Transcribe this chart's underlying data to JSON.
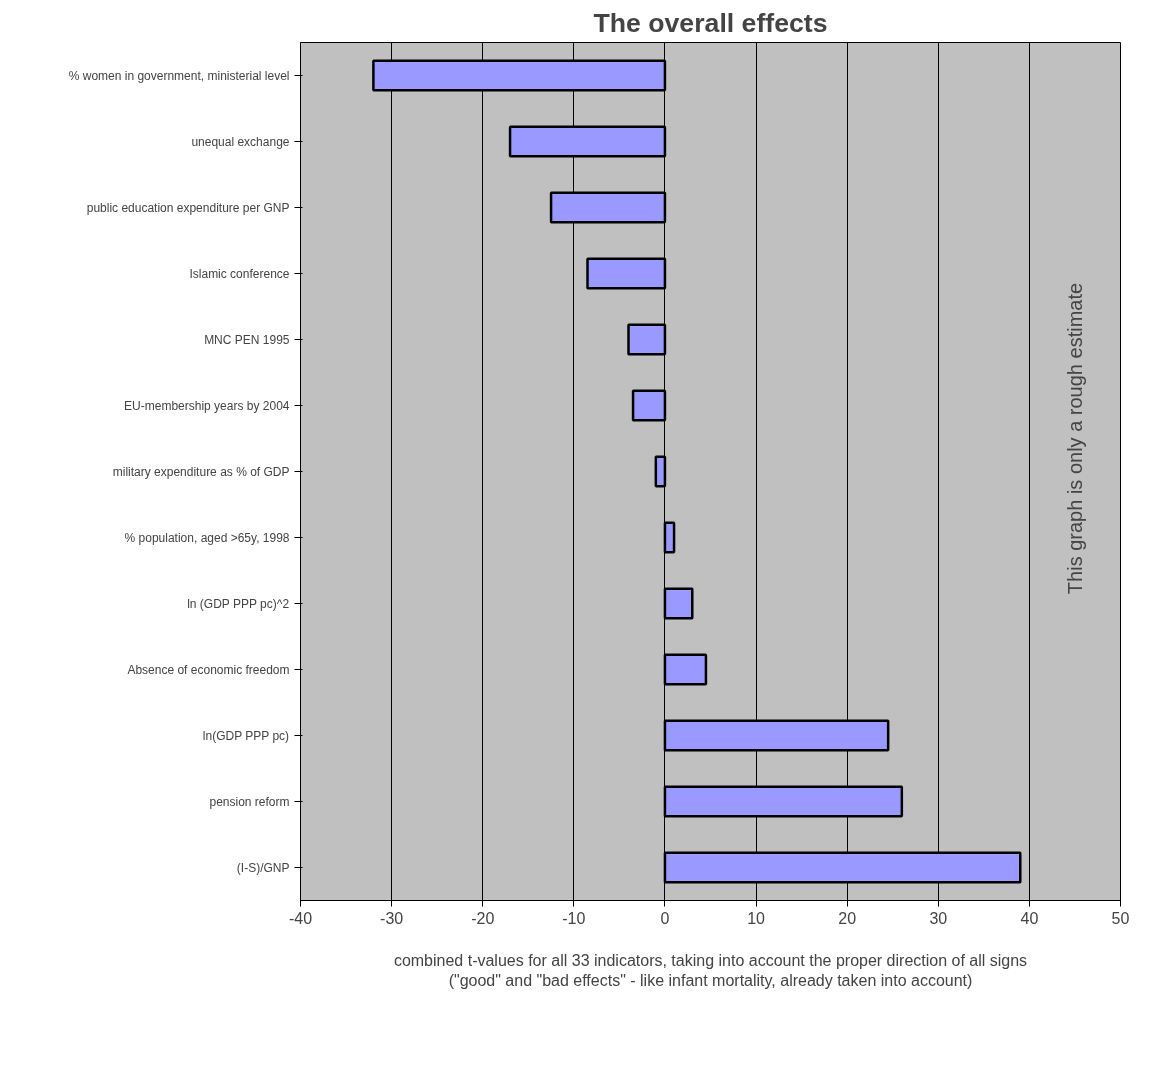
{
  "chart_data": {
    "type": "bar",
    "orientation": "horizontal",
    "title": "The overall effects",
    "xlabel": "combined t-values for all 33 indicators, taking into account the proper direction of all signs\n(\"good\" and \"bad effects\" - like infant mortality, already taken into account)",
    "categories": [
      "% women in government, ministerial level",
      "unequal exchange",
      "public education expenditure per GNP",
      "Islamic conference",
      "MNC PEN 1995",
      "EU-membership years by 2004",
      "military expenditure as % of GDP",
      "% population, aged >65y, 1998",
      "ln (GDP PPP pc)^2",
      "Absence of economic freedom",
      "ln(GDP PPP pc)",
      "pension reform",
      "(I-S)/GNP"
    ],
    "values": [
      -32,
      -17,
      -12.5,
      -8.5,
      -4,
      -3.5,
      -1,
      1,
      3,
      4.5,
      24.5,
      26,
      39
    ],
    "color": "#9999ff",
    "xlim": [
      -40,
      50
    ],
    "xticks": [
      -40,
      -30,
      -20,
      -10,
      0,
      10,
      20,
      30,
      40,
      50
    ],
    "grid": "x",
    "annotations": [
      "This graph is only a rough estimate"
    ]
  }
}
